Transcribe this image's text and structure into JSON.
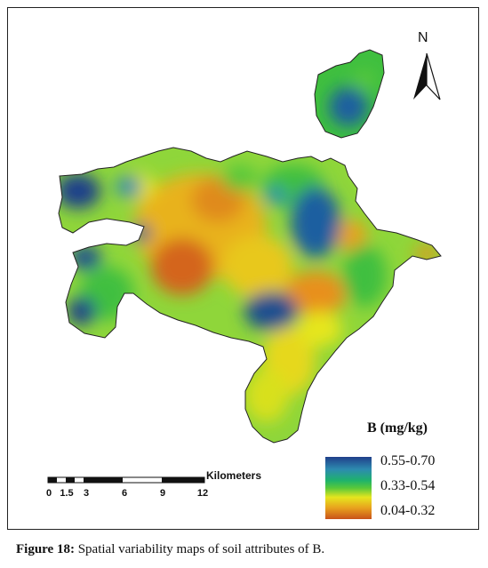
{
  "legend": {
    "title": "B (mg/kg)",
    "classes": [
      {
        "label": "0.55-0.70",
        "color": "#1f3f8a"
      },
      {
        "label": "0.33-0.54",
        "color": "#3fbf3f"
      },
      {
        "label": "0.04-0.32",
        "color": "#d4651e"
      }
    ],
    "ramp": [
      "#1f3f8a",
      "#2d8bb0",
      "#1fb36b",
      "#58c83a",
      "#e6e61e",
      "#e8a21e",
      "#c9521a"
    ]
  },
  "scale_bar": {
    "unit": "Kilometers",
    "ticks": [
      "0",
      "1.5",
      "3",
      "6",
      "9",
      "12"
    ]
  },
  "north_arrow": {
    "label": "N",
    "icon": "north-arrow-icon"
  },
  "caption": {
    "label": "Figure 18:",
    "text": " Spatial variability maps of soil attributes of B."
  }
}
